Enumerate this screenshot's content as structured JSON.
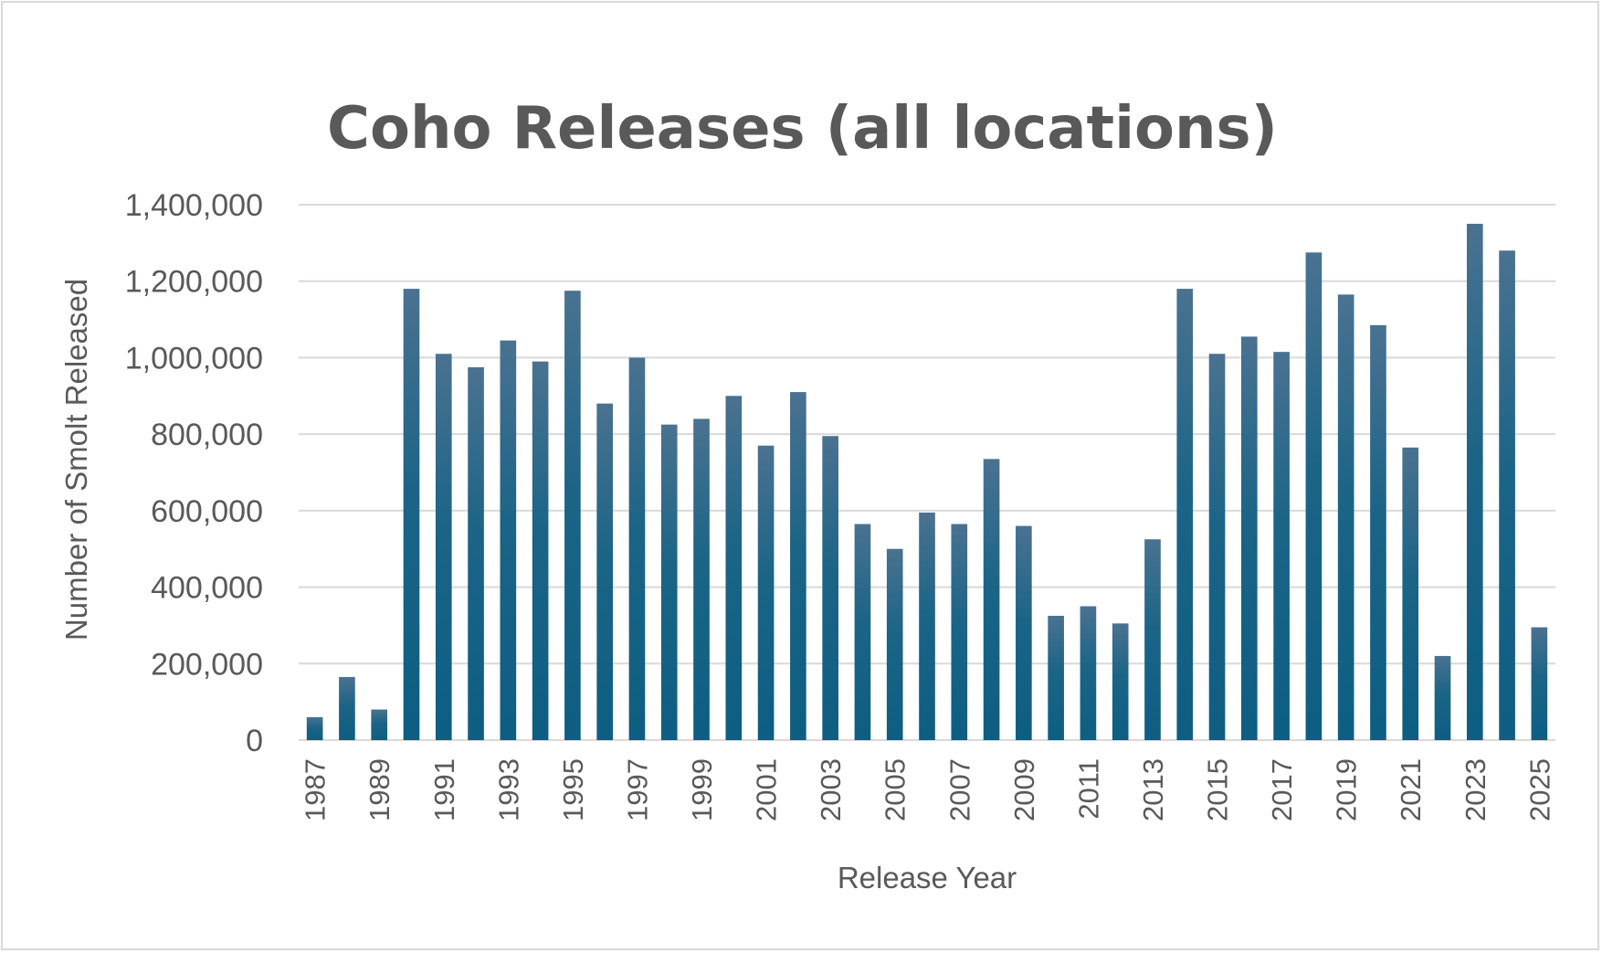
{
  "chart_data": {
    "type": "bar",
    "title": "Coho Releases (all locations)",
    "xlabel": "Release Year",
    "ylabel": "Number of  Smolt  Released",
    "ylim": [
      0,
      1400000
    ],
    "yticks": [
      0,
      200000,
      400000,
      600000,
      800000,
      1000000,
      1200000,
      1400000
    ],
    "ytick_labels": [
      "0",
      "200,000",
      "400,000",
      "600,000",
      "800,000",
      "1,000,000",
      "1,200,000",
      "1,400,000"
    ],
    "grid": true,
    "legend": "none",
    "bar_color_top": "#4a7290",
    "bar_color_bottom": "#0d5e82",
    "categories": [
      "1987",
      "1988",
      "1989",
      "1990",
      "1991",
      "1992",
      "1993",
      "1994",
      "1995",
      "1996",
      "1997",
      "1998",
      "1999",
      "2000",
      "2001",
      "2002",
      "2003",
      "2004",
      "2005",
      "2006",
      "2007",
      "2008",
      "2009",
      "2010",
      "2011",
      "2012",
      "2013",
      "2014",
      "2015",
      "2016",
      "2017",
      "2018",
      "2019",
      "2020",
      "2021",
      "2022",
      "2023",
      "2024",
      "2025"
    ],
    "tick_labels_shown": [
      "1987",
      "1989",
      "1991",
      "1993",
      "1995",
      "1997",
      "1999",
      "2001",
      "2003",
      "2005",
      "2007",
      "2009",
      "2011",
      "2013",
      "2015",
      "2017",
      "2019",
      "2021",
      "2023",
      "2025"
    ],
    "values": [
      60000,
      165000,
      80000,
      1180000,
      1010000,
      975000,
      1045000,
      990000,
      1175000,
      880000,
      1000000,
      825000,
      840000,
      900000,
      770000,
      910000,
      795000,
      565000,
      500000,
      595000,
      565000,
      735000,
      560000,
      325000,
      350000,
      305000,
      525000,
      1180000,
      1010000,
      1055000,
      1015000,
      1275000,
      1165000,
      1085000,
      765000,
      220000,
      1350000,
      1280000,
      295000
    ]
  }
}
